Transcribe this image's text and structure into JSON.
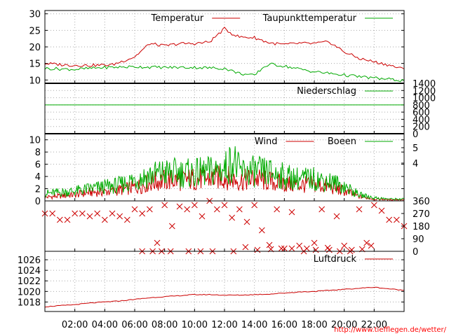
{
  "chart_data": [
    {
      "panel": "temperature",
      "type": "line",
      "yticks": [
        "10",
        "15",
        "20",
        "25",
        "30"
      ],
      "ylim": [
        9,
        31
      ],
      "grid": true,
      "legend": "top-right",
      "series": [
        {
          "name": "Temperatur",
          "color": "#cc0000",
          "x": [
            0,
            1.5,
            3,
            4.5,
            6,
            6.5,
            7,
            8,
            9,
            10,
            11,
            12,
            12.5,
            13,
            14,
            15,
            16,
            17,
            18,
            19,
            20,
            21,
            22,
            23,
            24
          ],
          "y": [
            15,
            14.5,
            14.4,
            14.6,
            17,
            19,
            21,
            20.3,
            21,
            21,
            21.5,
            25.5,
            24,
            23,
            22.8,
            21.2,
            20.7,
            21.1,
            21,
            21.5,
            18.5,
            16.5,
            15.5,
            14.5,
            13.2
          ]
        },
        {
          "name": "Taupunkttemperatur",
          "color": "#00aa00",
          "x": [
            0,
            2,
            4,
            6,
            8,
            10,
            12,
            13,
            14,
            14.5,
            15,
            16,
            17,
            18,
            19,
            20,
            21,
            22,
            23,
            24
          ],
          "y": [
            13.5,
            13.2,
            13.8,
            14,
            13.8,
            13.8,
            13.5,
            12,
            11.3,
            13.5,
            14.8,
            14.2,
            13.3,
            12.5,
            12,
            11.5,
            11,
            10.6,
            10.2,
            9.8
          ]
        }
      ]
    },
    {
      "panel": "precipitation",
      "type": "line",
      "yticks_right": [
        "0",
        "200",
        "400",
        "600",
        "800",
        "1000",
        "1200",
        "1400"
      ],
      "ylim": [
        0,
        1400
      ],
      "grid": true,
      "legend": "top-right",
      "series": [
        {
          "name": "Niederschlag",
          "color": "#00aa00",
          "x": [
            0,
            24
          ],
          "y": [
            800,
            800
          ]
        }
      ]
    },
    {
      "panel": "wind",
      "type": "line",
      "yticks": [
        "0",
        "2",
        "4",
        "6",
        "8",
        "10"
      ],
      "yticks_right": [
        "4",
        "5"
      ],
      "ylim": [
        0,
        11
      ],
      "grid": true,
      "legend": "top-right",
      "series": [
        {
          "name": "Wind",
          "color": "#cc0000",
          "x": [
            0,
            1,
            2,
            3,
            4,
            5,
            6,
            7,
            8,
            9,
            10,
            11,
            12,
            13,
            14,
            15,
            16,
            17,
            18,
            19,
            20,
            21,
            22,
            23,
            24
          ],
          "y": [
            0.6,
            0.8,
            1,
            1.4,
            1.5,
            1.8,
            2.2,
            3,
            3.4,
            3.4,
            3.6,
            3.6,
            3.9,
            3.3,
            3.6,
            3.2,
            2.8,
            2.6,
            2.7,
            2.3,
            1.6,
            0.7,
            0.3,
            0.2,
            0.2
          ]
        },
        {
          "name": "Boeen",
          "color": "#00aa00",
          "x": [
            0,
            1,
            2,
            3,
            4,
            5,
            6,
            7,
            8,
            9,
            10,
            11,
            12,
            12.6,
            13,
            14,
            15,
            16,
            17,
            18,
            19,
            20,
            21,
            22,
            23,
            24
          ],
          "y": [
            1.2,
            1.4,
            1.6,
            2,
            2.3,
            2.6,
            3.5,
            4.2,
            4.6,
            4.6,
            4.5,
            4.8,
            5.2,
            6.8,
            4.8,
            4.8,
            4.6,
            4,
            3.6,
            3.6,
            3.2,
            2.4,
            1,
            0.5,
            0.3,
            0.3
          ]
        }
      ]
    },
    {
      "panel": "wind-direction",
      "type": "scatter",
      "yticks_right": [
        "0",
        "90",
        "180",
        "270",
        "360"
      ],
      "ylim": [
        0,
        360
      ],
      "series": [
        {
          "name": "",
          "color": "#cc0000",
          "marker": "x",
          "x": [
            0,
            0.5,
            1,
            1.5,
            2,
            2.5,
            3,
            3.5,
            4,
            4.5,
            5,
            5.5,
            6,
            6.5,
            7,
            7.5,
            8,
            8.5,
            9,
            9.5,
            10,
            10.5,
            11,
            11.5,
            12,
            12.5,
            13,
            13.5,
            14,
            14.5,
            15,
            15.5,
            16,
            16.5,
            17,
            17.5,
            18,
            18.5,
            19,
            19.5,
            20,
            20.5,
            21,
            21.5,
            22,
            22.5,
            23,
            23.5,
            24
          ],
          "y": [
            270,
            270,
            225,
            225,
            270,
            270,
            250,
            270,
            225,
            270,
            250,
            225,
            300,
            270,
            300,
            60,
            330,
            180,
            320,
            300,
            330,
            250,
            360,
            300,
            330,
            240,
            300,
            210,
            330,
            150,
            45,
            300,
            20,
            280,
            40,
            20,
            60,
            300,
            10,
            250,
            40,
            10,
            300,
            60,
            330,
            290,
            225,
            225,
            180
          ]
        },
        {
          "name": "",
          "color": "#cc0000",
          "marker": "x",
          "x": [
            6.5,
            7.2,
            7.8,
            8.4,
            9.6,
            10.4,
            11.2,
            12.6,
            13.4,
            14.2,
            15.1,
            15.8,
            16.5,
            17.3,
            18.1,
            18.9,
            19.7,
            20.4,
            21.2,
            21.8
          ],
          "y": [
            0,
            0,
            0,
            0,
            0,
            0,
            0,
            0,
            30,
            10,
            15,
            20,
            20,
            0,
            10,
            25,
            0,
            0,
            15,
            40
          ]
        }
      ]
    },
    {
      "panel": "pressure",
      "type": "line",
      "yticks": [
        "1018",
        "1020",
        "1022",
        "1024",
        "1026"
      ],
      "ylim": [
        1016.2,
        1027.6
      ],
      "grid": true,
      "legend": "top-right",
      "series": [
        {
          "name": "Luftdruck",
          "color": "#cc0000",
          "x": [
            0,
            1,
            2,
            3,
            4,
            5,
            6,
            7,
            8,
            9,
            10,
            11,
            12,
            13,
            14,
            15,
            16,
            17,
            18,
            19,
            20,
            21,
            22,
            23,
            24
          ],
          "y": [
            1017.1,
            1017.3,
            1017.5,
            1017.8,
            1018,
            1018.2,
            1018.5,
            1018.8,
            1019,
            1019.2,
            1019.4,
            1019.4,
            1019.3,
            1019.3,
            1019.4,
            1019.5,
            1019.7,
            1019.9,
            1020,
            1020.2,
            1020.4,
            1020.6,
            1020.8,
            1020.5,
            1020.2
          ]
        }
      ]
    }
  ],
  "xaxis": {
    "ticks": [
      {
        "label": "02:00",
        "x": 2
      },
      {
        "label": "04:00",
        "x": 4
      },
      {
        "label": "06:00",
        "x": 6
      },
      {
        "label": "08:00",
        "x": 8
      },
      {
        "label": "10:00",
        "x": 10
      },
      {
        "label": "12:00",
        "x": 12
      },
      {
        "label": "14:00",
        "x": 14
      },
      {
        "label": "16:00",
        "x": 16
      },
      {
        "label": "18:00",
        "x": 18
      },
      {
        "label": "20:00",
        "x": 20
      },
      {
        "label": "22:00",
        "x": 22
      }
    ],
    "range": [
      0,
      24
    ]
  },
  "credit": "http://www.tiefflegen.de/wetter/"
}
